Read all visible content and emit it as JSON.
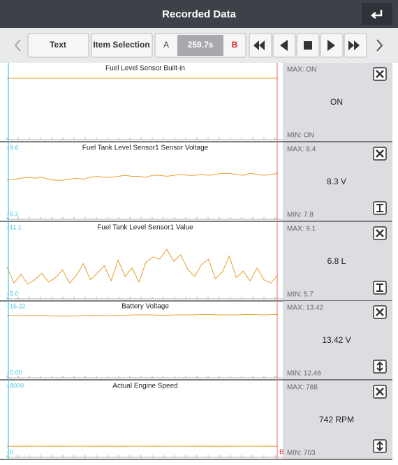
{
  "header": {
    "title": "Recorded Data"
  },
  "toolbar": {
    "text_button": "Text",
    "item_selection_button": "Item Selection",
    "marker_a": "A",
    "time": "259.7s",
    "marker_b": "B"
  },
  "cursor_label": "B",
  "panels": [
    {
      "title": "Fuel Level Sensor Built-in",
      "max": "MAX: ON",
      "value": "ON",
      "min": "MIN: ON"
    },
    {
      "title": "Fuel Tank Level Sensor1 Sensor Voltage",
      "yticks": [
        {
          "value": 9.6,
          "label": "9.6"
        },
        {
          "value": 6.2,
          "label": "6.2"
        }
      ],
      "max": "MAX: 8.4",
      "value": "8.3 V",
      "min": "MIN: 7.8",
      "trace": [
        7.95,
        8.0,
        8.05,
        8.1,
        8.05,
        8.1,
        8.0,
        7.95,
        7.95,
        8.0,
        8.05,
        8.0,
        8.1,
        8.15,
        8.1,
        8.1,
        8.15,
        8.2,
        8.15,
        8.15,
        8.1,
        8.2,
        8.2,
        8.15,
        8.2,
        8.25,
        8.2,
        8.2,
        8.25,
        8.2,
        8.25,
        8.3,
        8.3,
        8.25,
        8.2,
        8.3,
        8.25,
        8.2,
        8.25,
        8.3
      ]
    },
    {
      "title": "Fuel Tank Level Sensor1 Value",
      "yticks": [
        {
          "value": 11.1,
          "label": "11.1"
        },
        {
          "value": 5.0,
          "label": "5.0"
        }
      ],
      "max": "MAX: 9.1",
      "value": "6.8 L",
      "min": "MIN: 5.7",
      "trace": [
        7.5,
        6.0,
        6.8,
        5.9,
        6.3,
        6.9,
        6.1,
        6.5,
        7.2,
        6.0,
        6.7,
        7.8,
        6.3,
        6.9,
        7.6,
        6.2,
        8.1,
        6.6,
        7.4,
        6.1,
        7.9,
        8.4,
        8.2,
        9.1,
        8.0,
        8.6,
        7.3,
        6.6,
        7.7,
        8.2,
        6.4,
        7.0,
        8.5,
        6.5,
        7.1,
        6.2,
        7.4,
        6.3,
        6.0,
        6.8
      ]
    },
    {
      "title": "Battery Voltage",
      "yticks": [
        {
          "value": 15.22,
          "label": "15.22"
        },
        {
          "value": 0,
          "label": "0.00"
        }
      ],
      "max": "MAX: 13.42",
      "value": "13.42 V",
      "min": "MIN: 12.46",
      "trace": [
        13.2,
        13.1,
        13.2,
        13.1,
        13.0,
        13.1,
        13.2,
        13.1,
        13.2,
        13.3,
        13.3,
        13.2,
        13.3,
        13.3,
        13.4,
        13.3,
        13.3,
        13.4,
        13.3,
        13.4
      ]
    },
    {
      "title": "Actual Engine Speed",
      "yticks": [
        8000,
        0
      ],
      "max": "MAX: 788",
      "value": "742 RPM",
      "min": "MIN: 703",
      "trace": [
        750,
        745,
        755,
        748,
        752,
        760,
        745,
        750,
        742,
        755,
        748,
        750,
        758,
        746,
        752,
        744,
        750,
        755,
        748,
        742
      ]
    }
  ]
}
